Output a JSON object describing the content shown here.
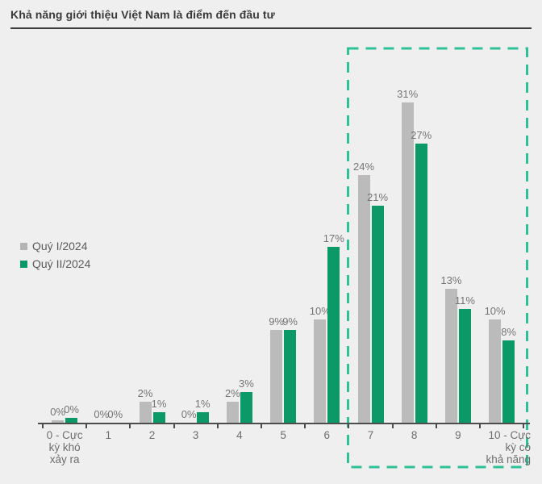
{
  "page": {
    "background": "#f0eff0"
  },
  "header": {
    "title": "Khả năng giới thiệu Việt Nam là điểm đến đầu tư"
  },
  "legend": [
    {
      "label": "Quý I/2024",
      "color": "#b5b4b4"
    },
    {
      "label": "Quý II/2024",
      "color": "#0b9a67"
    }
  ],
  "chart_data": {
    "type": "bar",
    "title": "Khả năng giới thiệu Việt Nam là điểm đến đầu tư",
    "categories": [
      "0 - Cực\nkỳ khó\nxảy ra",
      "1",
      "2",
      "3",
      "4",
      "5",
      "6",
      "7",
      "8",
      "9",
      "10 - Cực\nkỳ có\nkhả năng"
    ],
    "series": [
      {
        "name": "Quý I/2024",
        "color": "#bcbbbb",
        "values": [
          0,
          0,
          2,
          0,
          2,
          9,
          10,
          24,
          31,
          13,
          10
        ]
      },
      {
        "name": "Quý II/2024",
        "color": "#0b9a67",
        "values": [
          0,
          0,
          1,
          1,
          3,
          9,
          17,
          21,
          27,
          11,
          8
        ]
      }
    ],
    "value_suffix": "%",
    "xlabel": "",
    "ylabel": "",
    "ylim": [
      0,
      35
    ],
    "grid": false,
    "legend_position": "middle-left",
    "axis_color": "#4c4c4c",
    "value_label_color": "#757575",
    "highlight": {
      "style": "dashed-rectangle",
      "color": "#2ec096",
      "categories_covered": [
        "7",
        "8",
        "9",
        "10 - Cực kỳ có khả năng"
      ]
    }
  }
}
